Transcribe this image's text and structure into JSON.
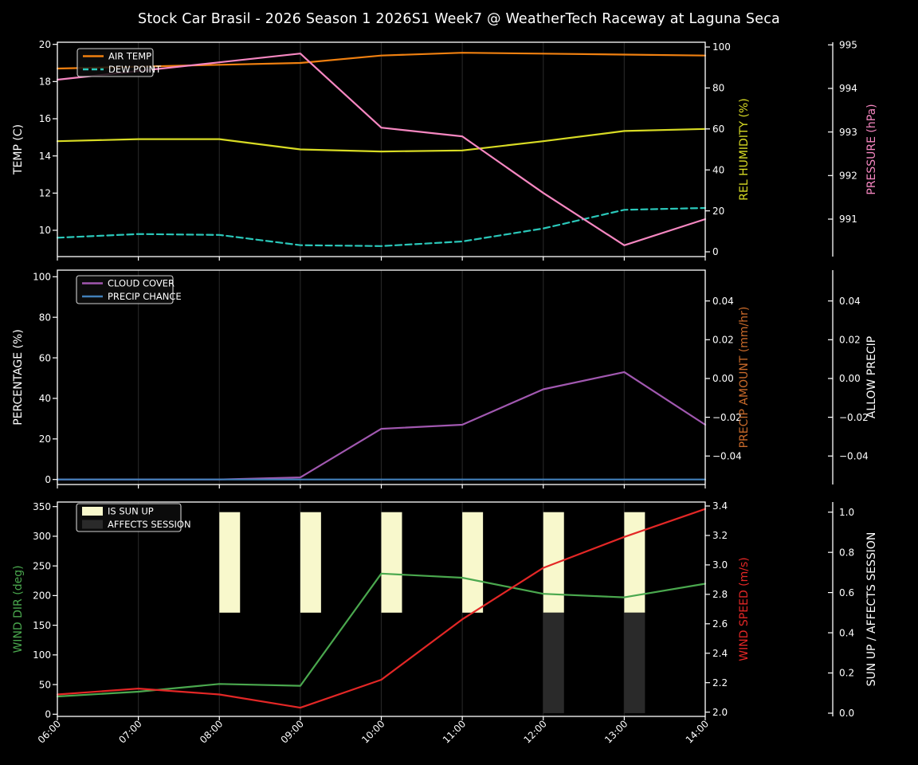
{
  "title": "Stock Car Brasil - 2026 Season 1 2026S1 Week7 @ WeatherTech Raceway at Laguna Seca",
  "x": {
    "hours": [
      6,
      7,
      8,
      9,
      10,
      11,
      12,
      13,
      14
    ],
    "tick_labels": [
      "06:00",
      "07:00",
      "08:00",
      "09:00",
      "10:00",
      "11:00",
      "12:00",
      "13:00",
      "14:00"
    ]
  },
  "colors": {
    "background": "#000000",
    "frame": "#ffffff",
    "grid": "#242424",
    "text": "#ffffff",
    "air_temp": "#f08010",
    "dew_point": "#2ac8ba",
    "humidity": "#d8db24",
    "pressure": "#f687c1",
    "cloud_cover": "#a158b0",
    "precip_chance": "#4280ba",
    "precip_amount": "#c96a2a",
    "wind_dir": "#4aa84e",
    "wind_speed": "#e32726",
    "sun_up": "#f8f8cc",
    "affects_session": "#2a2a2a",
    "legend_border": "#d0d0d0",
    "legend_fill": "#0d0d0d"
  },
  "chart_data": [
    {
      "type": "line",
      "panel": "temperature-humidity-pressure",
      "x_hours": [
        6,
        7,
        8,
        9,
        10,
        11,
        12,
        13,
        14
      ],
      "series": [
        {
          "name": "AIR TEMP",
          "axis": "left",
          "color": "air_temp",
          "dash": false,
          "values": [
            18.7,
            18.8,
            18.9,
            19.0,
            19.4,
            19.55,
            19.5,
            19.45,
            19.4
          ]
        },
        {
          "name": "DEW POINT",
          "axis": "left",
          "color": "dew_point",
          "dash": true,
          "values": [
            9.6,
            9.8,
            9.75,
            9.2,
            9.15,
            9.4,
            10.1,
            11.1,
            11.2
          ]
        },
        {
          "name": "REL HUMIDITY",
          "axis": "right",
          "color": "humidity",
          "dash": false,
          "values": [
            54,
            55,
            55,
            50,
            49,
            49.5,
            54,
            59,
            60
          ]
        },
        {
          "name": "PRESSURE",
          "axis": "far_right",
          "color": "pressure",
          "dash": false,
          "values": [
            994.2,
            994.4,
            994.6,
            994.8,
            993.1,
            992.9,
            991.6,
            990.4,
            991.0
          ]
        }
      ],
      "bars": [],
      "legend": [
        {
          "label": "AIR TEMP",
          "color": "air_temp",
          "swatch": "line"
        },
        {
          "label": "DEW POINT",
          "color": "dew_point",
          "swatch": "dashed-line"
        }
      ],
      "axes": {
        "left": {
          "label": "TEMP (C)",
          "label_color": "text",
          "range": [
            8.585,
            20.115
          ],
          "ticks": [
            [
              10,
              "10"
            ],
            [
              12,
              "12"
            ],
            [
              14,
              "14"
            ],
            [
              16,
              "16"
            ],
            [
              18,
              "18"
            ],
            [
              20,
              "20"
            ]
          ]
        },
        "right": {
          "label": "REL HUMIDITY (%)",
          "label_color": "humidity",
          "range": [
            -2.33,
            102.33
          ],
          "ticks": [
            [
              0,
              "0"
            ],
            [
              20,
              "20"
            ],
            [
              40,
              "40"
            ],
            [
              60,
              "60"
            ],
            [
              80,
              "80"
            ],
            [
              100,
              "100"
            ]
          ]
        },
        "far_right": {
          "label": "PRESSURE (hPa)",
          "label_color": "pressure",
          "range": [
            990.14,
            995.06
          ],
          "ticks": [
            [
              991,
              "991"
            ],
            [
              992,
              "992"
            ],
            [
              993,
              "993"
            ],
            [
              994,
              "994"
            ],
            [
              995,
              "995"
            ]
          ]
        }
      }
    },
    {
      "type": "line",
      "panel": "cloud-precip",
      "x_hours": [
        6,
        7,
        8,
        9,
        10,
        11,
        12,
        13,
        14
      ],
      "series": [
        {
          "name": "CLOUD COVER",
          "axis": "left",
          "color": "cloud_cover",
          "dash": false,
          "values": [
            0,
            0,
            0,
            1,
            25,
            27,
            44.5,
            53,
            27
          ]
        },
        {
          "name": "PRECIP CHANCE",
          "axis": "left",
          "color": "precip_chance",
          "dash": false,
          "values": [
            0,
            0,
            0,
            0,
            0,
            0,
            0,
            0,
            0
          ]
        }
      ],
      "bars": [],
      "legend": [
        {
          "label": "CLOUD COVER",
          "color": "cloud_cover",
          "swatch": "line"
        },
        {
          "label": "PRECIP CHANCE",
          "color": "precip_chance",
          "swatch": "line"
        }
      ],
      "axes": {
        "left": {
          "label": "PERCENTAGE (%)",
          "label_color": "text",
          "range": [
            -2.48,
            103.26
          ],
          "ticks": [
            [
              0,
              "0"
            ],
            [
              20,
              "20"
            ],
            [
              40,
              "40"
            ],
            [
              60,
              "60"
            ],
            [
              80,
              "80"
            ],
            [
              100,
              "100"
            ]
          ]
        },
        "right": {
          "label": "PRECIP AMOUNT (mm/hr)",
          "label_color": "precip_amount",
          "range": [
            -0.0547,
            0.0559
          ],
          "ticks": [
            [
              -0.04,
              "−0.04"
            ],
            [
              -0.02,
              "−0.02"
            ],
            [
              0,
              "0.00"
            ],
            [
              0.02,
              "0.02"
            ],
            [
              0.04,
              "0.04"
            ]
          ]
        },
        "far_right": {
          "label": "ALLOW PRECIP",
          "label_color": "text",
          "range": [
            -0.0547,
            0.0559
          ],
          "ticks": [
            [
              -0.04,
              "−0.04"
            ],
            [
              -0.02,
              "−0.02"
            ],
            [
              0,
              "0.00"
            ],
            [
              0.02,
              "0.02"
            ],
            [
              0.04,
              "0.04"
            ]
          ]
        }
      }
    },
    {
      "type": "line-bar",
      "panel": "wind-sun",
      "x_hours": [
        6,
        7,
        8,
        9,
        10,
        11,
        12,
        13,
        14
      ],
      "series": [
        {
          "name": "WIND DIR",
          "axis": "left",
          "color": "wind_dir",
          "dash": false,
          "values": [
            30,
            38,
            51,
            48,
            237,
            230,
            203,
            197,
            220
          ]
        },
        {
          "name": "WIND SPEED",
          "axis": "right",
          "color": "wind_speed",
          "dash": false,
          "values": [
            2.12,
            2.16,
            2.12,
            2.03,
            2.22,
            2.63,
            2.98,
            3.19,
            3.38
          ]
        }
      ],
      "bars": [
        {
          "name": "IS SUN UP",
          "axis": "far_right",
          "color": "sun_up",
          "hours": [
            8,
            9,
            10,
            11,
            12,
            13
          ],
          "from": 0.5,
          "to": 1.0
        },
        {
          "name": "AFFECTS SESSION",
          "axis": "far_right",
          "color": "affects_session",
          "hours": [
            12,
            13
          ],
          "from": 0.0,
          "to": 0.5
        }
      ],
      "legend": [
        {
          "label": "IS SUN UP",
          "color": "sun_up",
          "swatch": "patch"
        },
        {
          "label": "AFFECTS SESSION",
          "color": "affects_session",
          "swatch": "patch"
        }
      ],
      "axes": {
        "left": {
          "label": "WIND DIR (deg)",
          "label_color": "wind_dir",
          "range": [
            -3.63,
            357.66
          ],
          "ticks": [
            [
              0,
              "0"
            ],
            [
              50,
              "50"
            ],
            [
              100,
              "100"
            ],
            [
              150,
              "150"
            ],
            [
              200,
              "200"
            ],
            [
              250,
              "250"
            ],
            [
              300,
              "300"
            ],
            [
              350,
              "350"
            ]
          ]
        },
        "right": {
          "label": "WIND SPEED (m/s)",
          "label_color": "wind_speed",
          "range": [
            1.971,
            3.427
          ],
          "ticks": [
            [
              2.0,
              "2.0"
            ],
            [
              2.2,
              "2.2"
            ],
            [
              2.4,
              "2.4"
            ],
            [
              2.6,
              "2.6"
            ],
            [
              2.8,
              "2.8"
            ],
            [
              3.0,
              "3.0"
            ],
            [
              3.2,
              "3.2"
            ],
            [
              3.4,
              "3.4"
            ]
          ]
        },
        "far_right": {
          "label": "SUN UP / AFFECTS SESSION",
          "label_color": "text",
          "range": [
            -0.016,
            1.0503
          ],
          "ticks": [
            [
              0.0,
              "0.0"
            ],
            [
              0.2,
              "0.2"
            ],
            [
              0.4,
              "0.4"
            ],
            [
              0.6,
              "0.6"
            ],
            [
              0.8,
              "0.8"
            ],
            [
              1.0,
              "1.0"
            ]
          ]
        }
      }
    }
  ]
}
